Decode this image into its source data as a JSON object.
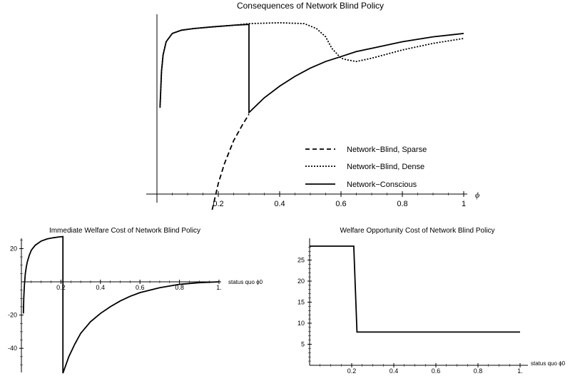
{
  "chart_data": [
    {
      "type": "line",
      "title": "Consequences of Network Blind Policy",
      "xlabel": "ϕ",
      "xlim": [
        0,
        1
      ],
      "x_ticks": [
        "0.2",
        "0.4",
        "0.6",
        "0.8",
        "1"
      ],
      "legend_position": "bottom-right",
      "series": [
        {
          "name": "Network−Blind, Sparse",
          "style": "dashed",
          "x": [
            0.18,
            0.2,
            0.22,
            0.25,
            0.28,
            0.3
          ],
          "y": [
            -0.1,
            0.06,
            0.18,
            0.32,
            0.42,
            0.48
          ]
        },
        {
          "name": "Network−Blind, Dense",
          "style": "dotted",
          "x": [
            0.01,
            0.015,
            0.02,
            0.03,
            0.05,
            0.08,
            0.12,
            0.18,
            0.25,
            0.3,
            0.4,
            0.48,
            0.52,
            0.55,
            0.57,
            0.6,
            0.62,
            0.65,
            0.7,
            0.8,
            0.9,
            1.0
          ],
          "y": [
            0.52,
            0.74,
            0.84,
            0.92,
            0.97,
            0.99,
            1.0,
            1.01,
            1.02,
            1.03,
            1.035,
            1.03,
            1.0,
            0.95,
            0.88,
            0.82,
            0.81,
            0.8,
            0.82,
            0.87,
            0.91,
            0.94
          ]
        },
        {
          "name": "Network−Conscious",
          "style": "solid",
          "x": [
            0.01,
            0.015,
            0.02,
            0.03,
            0.05,
            0.08,
            0.12,
            0.18,
            0.25,
            0.3,
            0.3,
            0.35,
            0.4,
            0.45,
            0.5,
            0.55,
            0.6,
            0.65,
            0.7,
            0.8,
            0.9,
            1.0
          ],
          "y": [
            0.52,
            0.74,
            0.84,
            0.92,
            0.97,
            0.99,
            1.0,
            1.01,
            1.02,
            1.025,
            0.49,
            0.58,
            0.65,
            0.71,
            0.76,
            0.8,
            0.83,
            0.86,
            0.88,
            0.92,
            0.95,
            0.97
          ]
        }
      ]
    },
    {
      "type": "line",
      "title": "Immediate Welfare Cost of Network Blind Policy",
      "xlabel": "status quo ϕ0",
      "xlim": [
        0,
        1
      ],
      "ylim": [
        -55,
        28
      ],
      "x_ticks": [
        "0.2",
        "0.4",
        "0.6",
        "0.8",
        "1."
      ],
      "y_ticks": [
        "20",
        "-20",
        "-40"
      ],
      "series": [
        {
          "name": "",
          "x": [
            0.01,
            0.012,
            0.015,
            0.02,
            0.025,
            0.03,
            0.04,
            0.05,
            0.07,
            0.1,
            0.13,
            0.16,
            0.19,
            0.21,
            0.21,
            0.24,
            0.27,
            0.3,
            0.35,
            0.4,
            0.45,
            0.5,
            0.55,
            0.6,
            0.7,
            0.8,
            0.9,
            1.0
          ],
          "y": [
            -19,
            -10,
            -2,
            5,
            9,
            12,
            16,
            19,
            22,
            24.5,
            25.8,
            26.5,
            27,
            27.2,
            -55,
            -45,
            -37.5,
            -31,
            -24,
            -19,
            -15,
            -11.5,
            -8.7,
            -6.5,
            -3.5,
            -1.5,
            -0.5,
            0
          ]
        }
      ]
    },
    {
      "type": "line",
      "title": "Welfare Opportunity Cost of Network Blind Policy",
      "xlabel": "status quo ϕ0",
      "xlim": [
        0,
        1
      ],
      "ylim": [
        0,
        28
      ],
      "x_ticks": [
        "0.2",
        "0.4",
        "0.6",
        "0.8",
        "1."
      ],
      "y_ticks": [
        "25",
        "20",
        "15",
        "10",
        "5"
      ],
      "series": [
        {
          "name": "",
          "x": [
            0.0,
            0.21,
            0.225,
            1.0
          ],
          "y": [
            28.3,
            28.3,
            7.9,
            7.9
          ]
        }
      ]
    }
  ]
}
